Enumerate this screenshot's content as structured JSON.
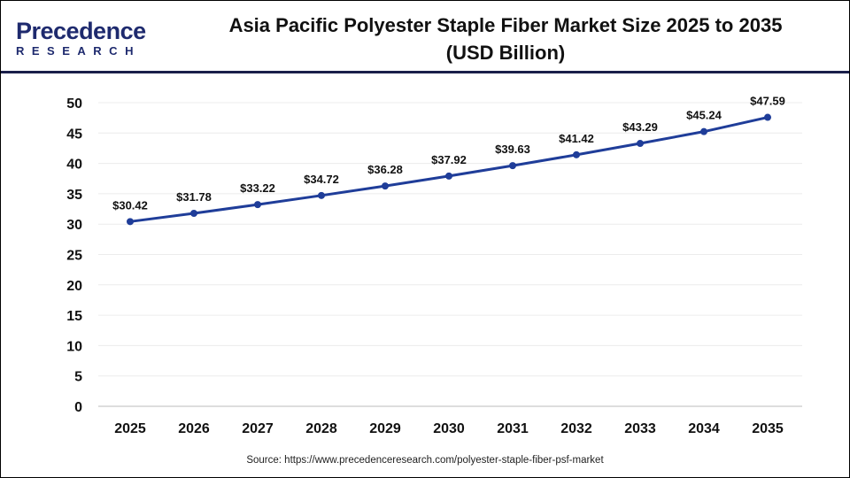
{
  "logo": {
    "line1": "Precedence",
    "line2": "RESEARCH"
  },
  "header": {
    "title_line1": "Asia Pacific Polyester Staple Fiber Market Size 2025 to 2035",
    "title_line2": "(USD Billion)"
  },
  "source": "Source: https://www.precedenceresearch.com/polyester-staple-fiber-psf-market",
  "chart_data": {
    "type": "line",
    "title": "Asia Pacific Polyester Staple Fiber Market Size 2025 to 2035 (USD Billion)",
    "xlabel": "",
    "ylabel": "",
    "categories": [
      "2025",
      "2026",
      "2027",
      "2028",
      "2029",
      "2030",
      "2031",
      "2032",
      "2033",
      "2034",
      "2035"
    ],
    "values": [
      30.42,
      31.78,
      33.22,
      34.72,
      36.28,
      37.92,
      39.63,
      41.42,
      43.29,
      45.24,
      47.59
    ],
    "labels": [
      "$30.42",
      "$31.78",
      "$33.22",
      "$34.72",
      "$36.28",
      "$37.92",
      "$39.63",
      "$41.42",
      "$43.29",
      "$45.24",
      "$47.59"
    ],
    "ylim": [
      0,
      50
    ],
    "yticks": [
      "0",
      "5",
      "10",
      "15",
      "20",
      "25",
      "30",
      "35",
      "40",
      "45",
      "50"
    ],
    "grid": true,
    "line_color": "#1f3d99"
  }
}
